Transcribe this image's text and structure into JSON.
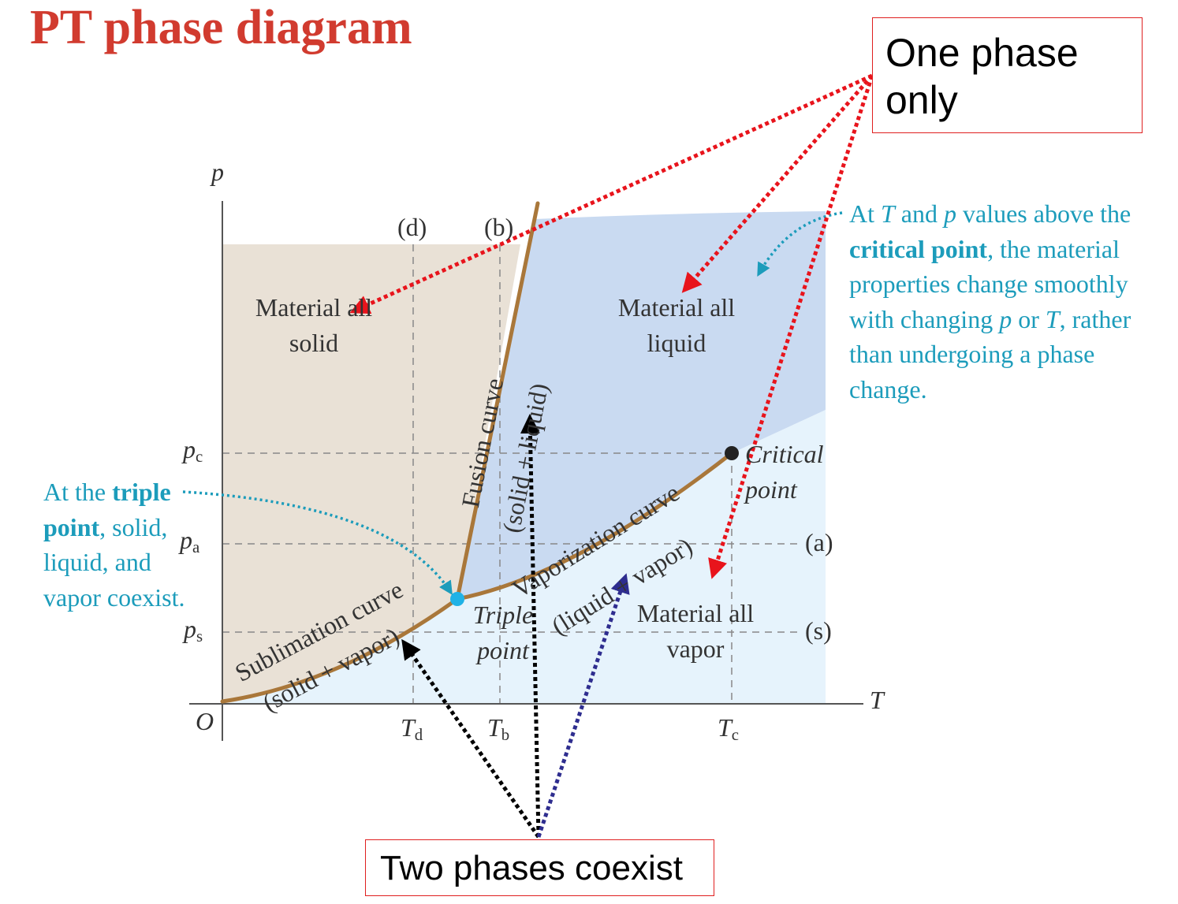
{
  "title": "PT phase diagram",
  "callouts": {
    "one_phase": "One phase only",
    "two_phases": "Two phases coexist"
  },
  "notes": {
    "critical_pre1": "At ",
    "critical_T": "T",
    "critical_mid1": " and ",
    "critical_p": "p",
    "critical_mid2": " values above the ",
    "critical_bold": "critical point",
    "critical_mid3": ", the material properties change smoothly with changing ",
    "critical_p2": "p",
    "critical_mid4": " or ",
    "critical_T2": "T",
    "critical_post": ", rather than undergoing a phase change.",
    "triple_pre": "At the ",
    "triple_bold1": "triple",
    "triple_bold2": "point",
    "triple_post": ", solid, liquid, and vapor coexist."
  },
  "axes": {
    "x_label": "T",
    "y_label": "p",
    "origin": "O",
    "y_ticks": [
      {
        "main": "p",
        "sub": "c"
      },
      {
        "main": "p",
        "sub": "a"
      },
      {
        "main": "p",
        "sub": "s"
      }
    ],
    "x_ticks": [
      {
        "main": "T",
        "sub": "d"
      },
      {
        "main": "T",
        "sub": "b"
      },
      {
        "main": "T",
        "sub": "c"
      }
    ],
    "line_labels": {
      "d": "(d)",
      "b": "(b)",
      "a": "(a)",
      "s": "(s)"
    }
  },
  "regions": {
    "solid_line1": "Material all",
    "solid_line2": "solid",
    "liquid_line1": "Material all",
    "liquid_line2": "liquid",
    "vapor_line1": "Material all",
    "vapor_line2": "vapor"
  },
  "curves": {
    "fusion": "Fusion curve",
    "fusion_sub": "(solid + liquid)",
    "vaporization": "Vaporization curve",
    "vaporization_sub": "(liquid + vapor)",
    "sublimation": "Sublimation curve",
    "sublimation_sub": "(solid + vapor)"
  },
  "points": {
    "critical_line1": "Critical",
    "critical_line2": "point",
    "triple_line1": "Triple",
    "triple_line2": "point"
  },
  "colors": {
    "title": "#d13b2f",
    "note": "#1c9cbb",
    "curve": "#a9773a",
    "solid_region": "#e9e1d6",
    "liquid_region": "#c9daf1",
    "vapor_region": "#e6f3fc",
    "red_arrow": "#e8141c",
    "blue_arrow": "#2e2d8f",
    "black_arrow": "#000000"
  }
}
